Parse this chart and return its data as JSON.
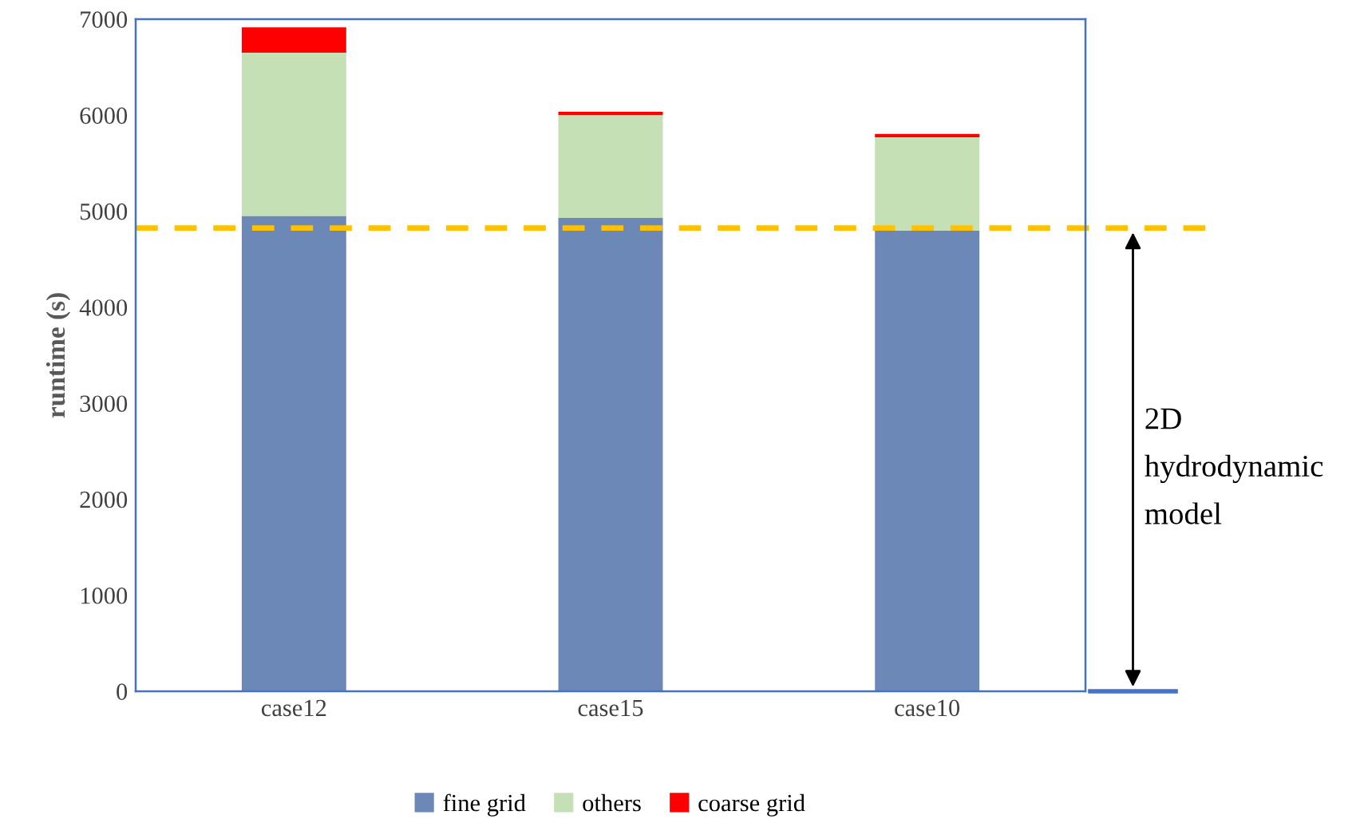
{
  "chart_data": {
    "type": "bar",
    "stacked": true,
    "ylabel": "runtime (s)",
    "categories": [
      "case12",
      "case15",
      "case10"
    ],
    "series": [
      {
        "name": "fine grid",
        "color": "#6c88b6",
        "values": [
          4950,
          4930,
          4800
        ]
      },
      {
        "name": "others",
        "color": "#c5e0b4",
        "values": [
          1700,
          1070,
          970
        ]
      },
      {
        "name": "coarse grid",
        "color": "#ff0000",
        "values": [
          265,
          35,
          35
        ]
      }
    ],
    "ylim": [
      0,
      7000
    ],
    "yticks": [
      0,
      1000,
      2000,
      3000,
      4000,
      5000,
      6000,
      7000
    ],
    "grid": false,
    "legend": "bottom",
    "ref_lines": [
      {
        "axis": "y",
        "value": 4825,
        "color": "#ffc000",
        "line_style": "dashed"
      }
    ],
    "annotations": [
      "2D hydrodynamic model"
    ]
  }
}
